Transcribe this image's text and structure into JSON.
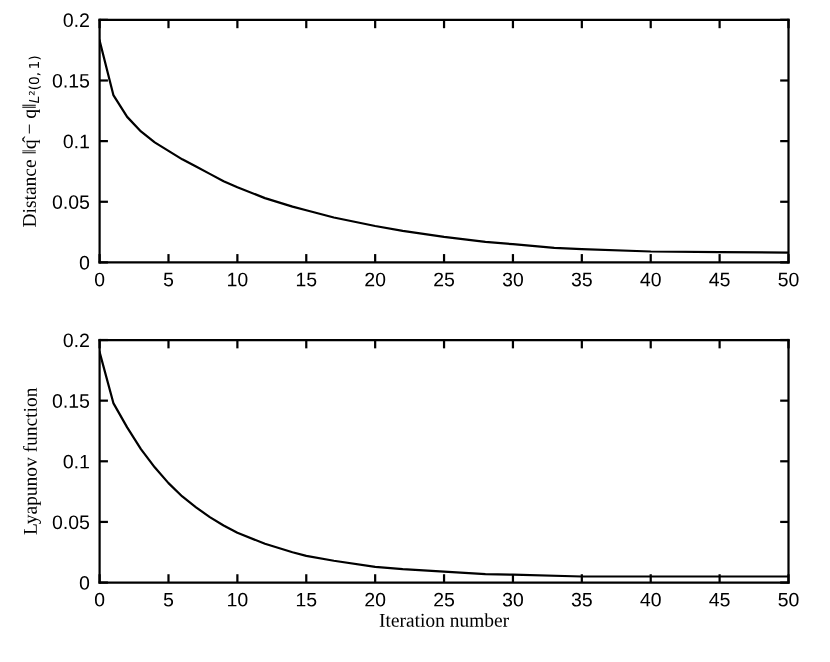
{
  "chart_data": [
    {
      "type": "line",
      "ylabel": "Distance ‖q̂ − q‖$_{L²(0,1)}$",
      "xlim": [
        0,
        50
      ],
      "xticks": [
        0,
        5,
        10,
        15,
        20,
        25,
        30,
        35,
        40,
        45,
        50
      ],
      "ylim": [
        0,
        0.2
      ],
      "yticks": [
        0,
        0.05,
        0.1,
        0.15,
        0.2
      ],
      "grid": false,
      "legend": false,
      "x": [
        0,
        1,
        2,
        3,
        4,
        5,
        6,
        7,
        8,
        9,
        10,
        12,
        14,
        15,
        17,
        20,
        22,
        25,
        28,
        30,
        33,
        35,
        40,
        45,
        50
      ],
      "series": [
        {
          "color": "#000000",
          "values": [
            0.183,
            0.138,
            0.12,
            0.108,
            0.099,
            0.092,
            0.085,
            0.079,
            0.073,
            0.067,
            0.062,
            0.053,
            0.046,
            0.043,
            0.037,
            0.03,
            0.026,
            0.021,
            0.017,
            0.015,
            0.012,
            0.011,
            0.009,
            0.0085,
            0.008
          ]
        }
      ]
    },
    {
      "type": "line",
      "ylabel": "Lyapunov function",
      "xlabel": "Iteration number",
      "xlim": [
        0,
        50
      ],
      "xticks": [
        0,
        5,
        10,
        15,
        20,
        25,
        30,
        35,
        40,
        45,
        50
      ],
      "ylim": [
        0,
        0.2
      ],
      "yticks": [
        0,
        0.05,
        0.1,
        0.15,
        0.2
      ],
      "grid": false,
      "legend": false,
      "x": [
        0,
        1,
        2,
        3,
        4,
        5,
        6,
        7,
        8,
        9,
        10,
        12,
        14,
        15,
        17,
        20,
        22,
        25,
        28,
        30,
        35,
        40,
        45,
        50
      ],
      "series": [
        {
          "color": "#000000",
          "values": [
            0.19,
            0.148,
            0.128,
            0.11,
            0.095,
            0.082,
            0.071,
            0.062,
            0.054,
            0.047,
            0.041,
            0.032,
            0.025,
            0.022,
            0.018,
            0.013,
            0.011,
            0.009,
            0.007,
            0.0065,
            0.005,
            0.005,
            0.005,
            0.005
          ]
        }
      ]
    }
  ]
}
